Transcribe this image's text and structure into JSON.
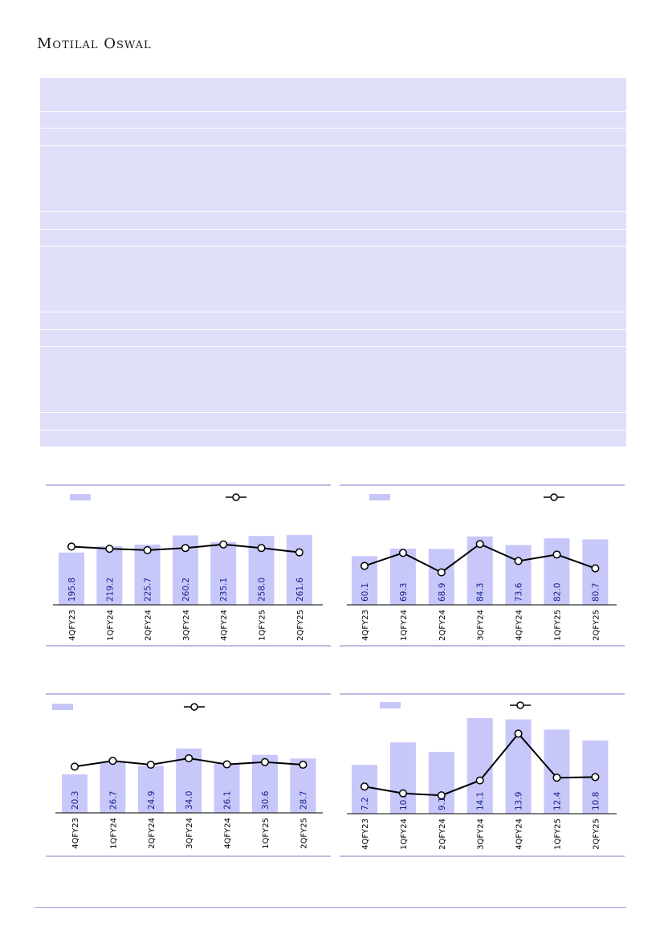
{
  "header": {
    "brand": "Motilal Oswal"
  },
  "colors": {
    "bar": "#c7c7fa",
    "line": "#000000",
    "label": "#1c1c8c",
    "rule": "#7b7bc4",
    "table_bg": "#e0e0fb"
  },
  "chart_data": [
    {
      "type": "bar",
      "categories": [
        "4QFY23",
        "1QFY24",
        "2QFY24",
        "3QFY24",
        "4QFY24",
        "1QFY25",
        "2QFY25"
      ],
      "series": [
        {
          "values": [
            195.8,
            219.2,
            225.7,
            260.2,
            235.1,
            258.0,
            261.6
          ],
          "labels": [
            "195.8",
            "219.2",
            "225.7",
            "260.2",
            "235.1",
            "258.0",
            "261.6"
          ]
        },
        {
          "type": "line",
          "values": [
            8.1,
            7.8,
            7.6,
            7.9,
            8.4,
            7.9,
            7.3
          ]
        }
      ],
      "ylim": [
        0,
        310
      ],
      "y2lim": [
        0,
        11.5
      ]
    },
    {
      "type": "bar",
      "categories": [
        "4QFY23",
        "1QFY24",
        "2QFY24",
        "3QFY24",
        "4QFY24",
        "1QFY25",
        "2QFY25"
      ],
      "series": [
        {
          "values": [
            60.1,
            69.3,
            68.9,
            84.3,
            73.6,
            82.0,
            80.7
          ],
          "labels": [
            "60.1",
            "69.3",
            "68.9",
            "84.3",
            "73.6",
            "82.0",
            "80.7"
          ]
        },
        {
          "type": "line",
          "values": [
            4.8,
            6.4,
            4.0,
            7.5,
            5.4,
            6.2,
            4.5
          ]
        }
      ],
      "ylim": [
        0,
        100
      ],
      "y2lim": [
        0,
        10
      ]
    },
    {
      "type": "bar",
      "categories": [
        "4QFY23",
        "1QFY24",
        "2QFY24",
        "3QFY24",
        "4QFY24",
        "1QFY25",
        "2QFY25"
      ],
      "series": [
        {
          "values": [
            20.3,
            26.7,
            24.9,
            34.0,
            26.1,
            30.6,
            28.7
          ],
          "labels": [
            "20.3",
            "26.7",
            "24.9",
            "34.0",
            "26.1",
            "30.6",
            "28.7"
          ]
        },
        {
          "type": "line",
          "values": [
            14.4,
            16.2,
            15.0,
            17.0,
            15.1,
            15.8,
            15.0
          ]
        }
      ],
      "ylim": [
        0,
        39
      ],
      "y2lim": [
        0,
        23
      ]
    },
    {
      "type": "bar",
      "categories": [
        "4QFY23",
        "1QFY24",
        "2QFY24",
        "3QFY24",
        "4QFY24",
        "1QFY25",
        "2QFY25"
      ],
      "series": [
        {
          "values": [
            7.2,
            10.5,
            9.1,
            14.1,
            13.9,
            12.4,
            10.8
          ],
          "labels": [
            "7.2",
            "10.5",
            "9.1",
            "14.1",
            "13.9",
            "12.4",
            "10.8"
          ]
        },
        {
          "type": "line",
          "values": [
            4.0,
            3.0,
            2.7,
            4.9,
            11.8,
            5.3,
            5.4
          ]
        }
      ],
      "ylim": [
        0,
        14.8
      ],
      "y2lim": [
        0,
        14.8
      ]
    }
  ]
}
